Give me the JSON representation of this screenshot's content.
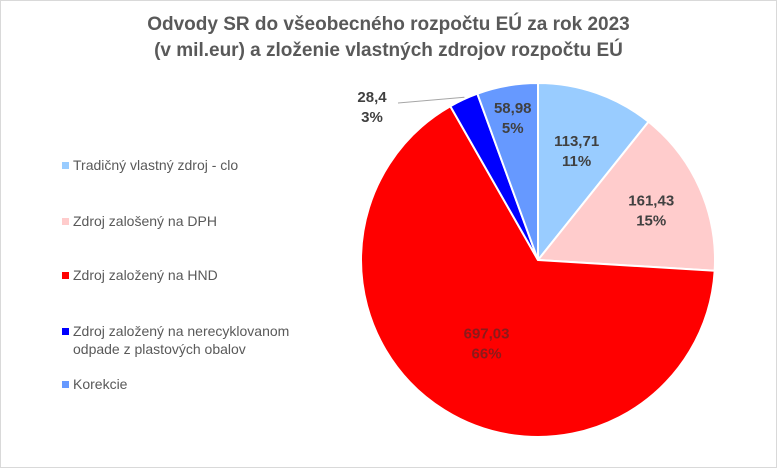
{
  "chart_data": {
    "type": "pie",
    "title": [
      "Odvody SR do všeobecného rozpočtu EÚ za rok 2023",
      "(v mil.eur) a zloženie vlastných zdrojov rozpočtu EÚ"
    ],
    "legend_position": "left",
    "slices": [
      {
        "name": "Tradičný vlastný zdroj - clo",
        "value": 113.71,
        "value_label": "113,71",
        "percent_label": "11%",
        "color": "#99CCFF"
      },
      {
        "name": "Zdroj zalošený na DPH",
        "value": 161.43,
        "value_label": "161,43",
        "percent_label": "15%",
        "color": "#FFCCCC"
      },
      {
        "name": "Zdroj založený na HND",
        "value": 697.03,
        "value_label": "697,03",
        "percent_label": "66%",
        "color": "#FF0000"
      },
      {
        "name": "Zdroj založený na nerecyklovanom odpade z plastových obalov",
        "name_lines": [
          "Zdroj založený na nerecyklovanom",
          "odpade z plastových obalov"
        ],
        "value": 28.4,
        "value_label": "28,4",
        "percent_label": "3%",
        "color": "#0000FF"
      },
      {
        "name": "Korekcie",
        "value": 58.98,
        "value_label": "58,98",
        "percent_label": "5%",
        "color": "#6699FF"
      }
    ]
  }
}
